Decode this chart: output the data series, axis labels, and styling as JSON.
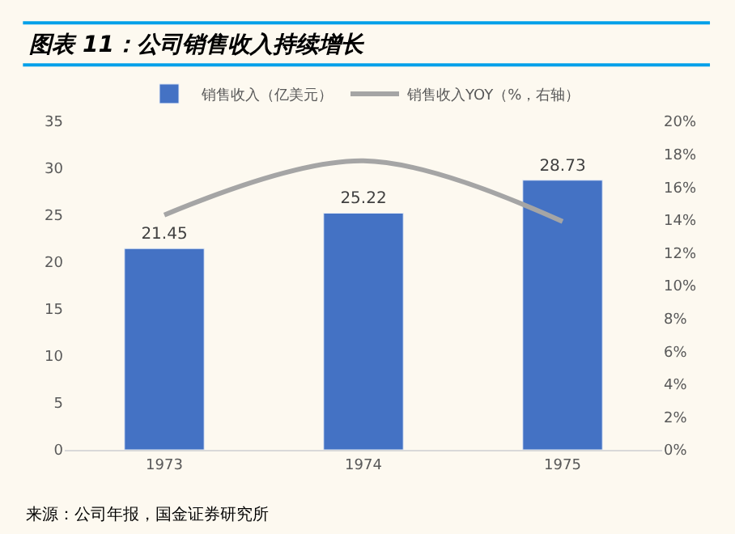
{
  "chart_data": {
    "type": "bar",
    "title": "图表 11：公司销售收入持续增长",
    "categories": [
      "1973",
      "1974",
      "1975"
    ],
    "series": [
      {
        "name": "销售收入（亿美元）",
        "color": "#4472c4",
        "values": [
          21.45,
          25.22,
          28.73
        ],
        "value_labels": [
          "21.45",
          "25.22",
          "28.73"
        ]
      },
      {
        "name": "销售收入YOY（%，右轴）",
        "type": "line",
        "axis": "y2",
        "color": "#a5a5a5",
        "values": [
          14.3,
          17.6,
          13.9
        ]
      }
    ],
    "ylim": [
      0,
      35
    ],
    "yticks": [
      0,
      5,
      10,
      15,
      20,
      25,
      30,
      35
    ],
    "y2lim": [
      0,
      20
    ],
    "y2ticks": [
      {
        "value": 0,
        "label": "0%"
      },
      {
        "value": 2,
        "label": "2%"
      },
      {
        "value": 4,
        "label": "4%"
      },
      {
        "value": 6,
        "label": "6%"
      },
      {
        "value": 8,
        "label": "8%"
      },
      {
        "value": 10,
        "label": "10%"
      },
      {
        "value": 12,
        "label": "12%"
      },
      {
        "value": 14,
        "label": "14%"
      },
      {
        "value": 16,
        "label": "16%"
      },
      {
        "value": 18,
        "label": "18%"
      },
      {
        "value": 20,
        "label": "20%"
      }
    ],
    "grid": false,
    "legend": "top",
    "marker": "none",
    "annotations": [
      "来源：公司年报，国金证券研究所"
    ]
  }
}
